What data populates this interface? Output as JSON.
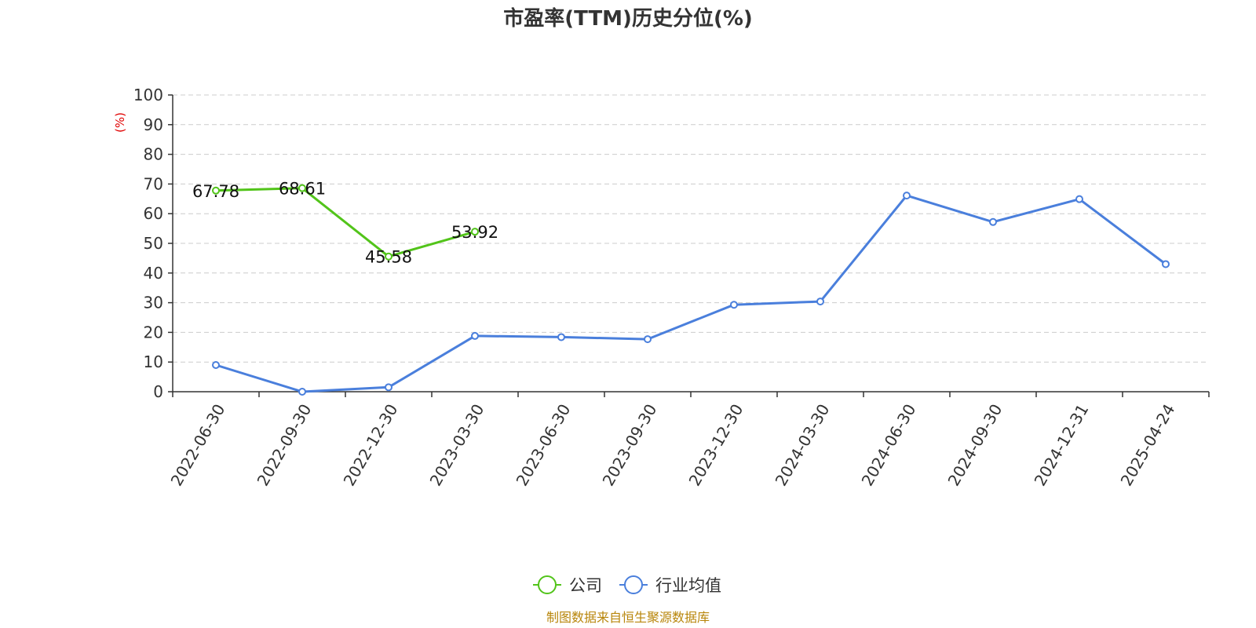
{
  "chart_data": {
    "type": "line",
    "title": "市盈率(TTM)历史分位(%)",
    "y_unit_label": "(%)",
    "ylim": [
      0,
      100
    ],
    "y_ticks": [
      "0",
      "10",
      "20",
      "30",
      "40",
      "50",
      "60",
      "70",
      "80",
      "90",
      "100"
    ],
    "categories": [
      "2022-06-30",
      "2022-09-30",
      "2022-12-30",
      "2023-03-30",
      "2023-06-30",
      "2023-09-30",
      "2023-12-30",
      "2024-03-30",
      "2024-06-30",
      "2024-09-30",
      "2024-12-31",
      "2025-04-24"
    ],
    "grid": true,
    "legend_position": "bottom-center",
    "series": [
      {
        "name": "公司",
        "color": "#52c41a",
        "values": [
          67.78,
          68.61,
          45.58,
          53.92,
          null,
          null,
          null,
          null,
          null,
          null,
          null,
          null
        ],
        "data_labels": [
          "67.78",
          "68.61",
          "45.58",
          "53.92"
        ]
      },
      {
        "name": "行业均值",
        "color": "#4a7fdc",
        "values": [
          9,
          0,
          1.5,
          18.8,
          18.4,
          17.7,
          29.3,
          30.4,
          66.1,
          57.2,
          64.9,
          43
        ]
      }
    ]
  },
  "footer": "制图数据来自恒生聚源数据库"
}
